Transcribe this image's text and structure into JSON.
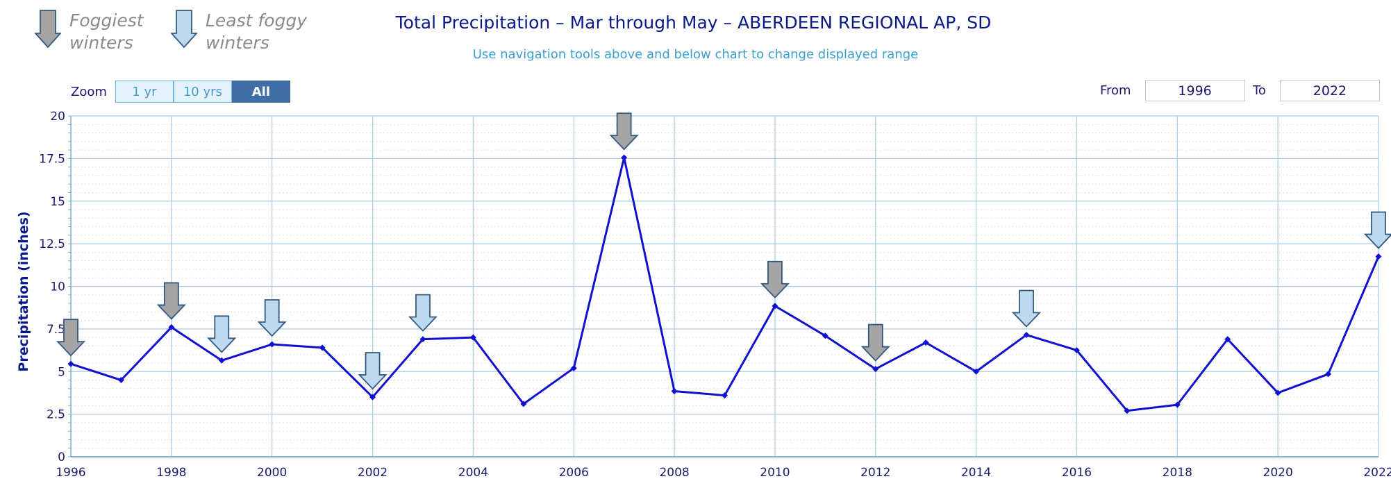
{
  "legend": {
    "foggiest_label": "Foggiest winters",
    "least_foggy_label": "Least foggy winters",
    "foggiest_color": "#a4a4a4",
    "least_foggy_color": "#bcd9f0"
  },
  "zoom": {
    "label": "Zoom",
    "buttons": [
      "1 yr",
      "10 yrs",
      "All"
    ],
    "active": "All"
  },
  "range": {
    "from_label": "From",
    "from_value": "1996",
    "to_label": "To",
    "to_value": "2022"
  },
  "chart_data": {
    "type": "line",
    "title": "Total Precipitation – Mar through May – ABERDEEN REGIONAL AP, SD",
    "subtitle": "Use navigation tools above and below chart to change displayed range",
    "xlabel": "",
    "ylabel": "Precipitation (inches)",
    "xlim": [
      1996,
      2022
    ],
    "ylim": [
      0,
      20
    ],
    "yticks": [
      0,
      2.5,
      5,
      7.5,
      10,
      12.5,
      15,
      17.5,
      20
    ],
    "xticks": [
      1996,
      1998,
      2000,
      2002,
      2004,
      2006,
      2008,
      2010,
      2012,
      2014,
      2016,
      2018,
      2020,
      2022
    ],
    "grid": true,
    "line_color": "#1010d0",
    "series": [
      {
        "x": [
          1996,
          1997,
          1998,
          1999,
          2000,
          2001,
          2002,
          2003,
          2004,
          2005,
          2006,
          2007,
          2008,
          2009,
          2010,
          2011,
          2012,
          2013,
          2014,
          2015,
          2016,
          2017,
          2018,
          2019,
          2020,
          2021,
          2022
        ],
        "values": [
          5.45,
          4.5,
          7.6,
          5.65,
          6.6,
          6.4,
          3.5,
          6.9,
          7.0,
          3.1,
          5.2,
          17.55,
          3.85,
          3.6,
          8.85,
          7.1,
          5.15,
          6.7,
          5.0,
          7.15,
          6.25,
          2.7,
          3.05,
          6.9,
          3.75,
          4.85,
          11.75
        ]
      }
    ],
    "markers": [
      {
        "year": 1996,
        "kind": "foggiest"
      },
      {
        "year": 1998,
        "kind": "foggiest"
      },
      {
        "year": 1999,
        "kind": "least_foggy"
      },
      {
        "year": 2000,
        "kind": "least_foggy"
      },
      {
        "year": 2002,
        "kind": "least_foggy"
      },
      {
        "year": 2003,
        "kind": "least_foggy"
      },
      {
        "year": 2007,
        "kind": "foggiest"
      },
      {
        "year": 2010,
        "kind": "foggiest"
      },
      {
        "year": 2012,
        "kind": "foggiest"
      },
      {
        "year": 2015,
        "kind": "least_foggy"
      },
      {
        "year": 2022,
        "kind": "least_foggy"
      }
    ]
  }
}
